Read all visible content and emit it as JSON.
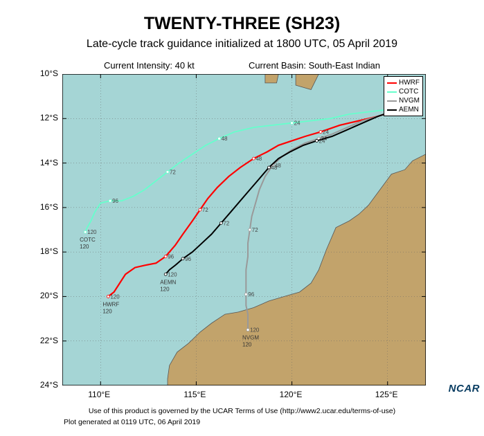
{
  "title": "TWENTY-THREE (SH23)",
  "subtitle": "Late-cycle track guidance initialized at 1800 UTC, 05 April 2019",
  "current_intensity_label": "Current Intensity: 40 kt",
  "current_basin_label": "Current Basin: South-East Indian",
  "ncar_logo_text": "NCAR",
  "disclaimer": "Use of this product is governed by the UCAR Terms of Use (http://www2.ucar.edu/terms-of-use)",
  "timestamp": "Plot generated at 0119 UTC, 06 April 2019",
  "chart": {
    "type": "map-track",
    "background_ocean": "#a5d5d5",
    "background_land": "#c2a36b",
    "coastline_color": "#555555",
    "gridline_color": "#666666",
    "axis_label_fontsize": 12,
    "title_fontsize": 25,
    "subtitle_fontsize": 16,
    "info_fontsize": 13,
    "xlim": [
      108,
      127
    ],
    "ylim": [
      -24,
      -10
    ],
    "xtick_step": 5,
    "ytick_step": 2,
    "xticks": [
      "110°E",
      "115°E",
      "120°E",
      "125°E"
    ],
    "yticks": [
      "10°S",
      "12°S",
      "14°S",
      "16°S",
      "18°S",
      "20°S",
      "22°S",
      "24°S"
    ],
    "hour_markers": [
      24,
      48,
      72,
      96,
      120
    ],
    "hour_marker_color": "#ffffff",
    "hour_label_fontsize": 8,
    "legend": {
      "position": "upper-right",
      "border_color": "#000000",
      "background": "#ffffff",
      "fontsize": 10,
      "items": [
        {
          "label": "HWRF",
          "color": "#ff0000"
        },
        {
          "label": "COTC",
          "color": "#66ffcc"
        },
        {
          "label": "NVGM",
          "color": "#999999"
        },
        {
          "label": "AEMN",
          "color": "#000000"
        }
      ]
    },
    "tracks": [
      {
        "model": "HWRF",
        "color": "#ff0000",
        "line_width": 2.2,
        "end_label_lonlat": [
          110.4,
          -20.0
        ],
        "points": [
          [
            125.9,
            -11.5
          ],
          [
            125.2,
            -11.7
          ],
          [
            124.5,
            -11.9
          ],
          [
            123.5,
            -12.1
          ],
          [
            122.5,
            -12.3
          ],
          [
            121.5,
            -12.6
          ],
          [
            120.7,
            -12.8
          ],
          [
            120.0,
            -13.0
          ],
          [
            119.3,
            -13.2
          ],
          [
            118.7,
            -13.5
          ],
          [
            118.0,
            -13.8
          ],
          [
            117.3,
            -14.2
          ],
          [
            116.7,
            -14.6
          ],
          [
            116.1,
            -15.1
          ],
          [
            115.6,
            -15.6
          ],
          [
            115.2,
            -16.1
          ],
          [
            114.8,
            -16.6
          ],
          [
            114.3,
            -17.2
          ],
          [
            113.9,
            -17.7
          ],
          [
            113.4,
            -18.2
          ],
          [
            112.9,
            -18.5
          ],
          [
            112.3,
            -18.6
          ],
          [
            111.8,
            -18.7
          ],
          [
            111.3,
            -19.0
          ],
          [
            111.0,
            -19.4
          ],
          [
            110.7,
            -19.8
          ],
          [
            110.4,
            -20.0
          ]
        ],
        "hours": [
          [
            121.5,
            -12.6,
            24
          ],
          [
            118.0,
            -13.8,
            48
          ],
          [
            115.2,
            -16.1,
            72
          ],
          [
            113.4,
            -18.2,
            96
          ],
          [
            110.4,
            -20.0,
            120
          ]
        ]
      },
      {
        "model": "COTC",
        "color": "#66ffcc",
        "line_width": 1.8,
        "end_label_lonlat": [
          109.2,
          -17.1
        ],
        "points": [
          [
            125.9,
            -11.5
          ],
          [
            125.0,
            -11.6
          ],
          [
            124.0,
            -11.7
          ],
          [
            123.0,
            -11.8
          ],
          [
            122.0,
            -12.0
          ],
          [
            121.0,
            -12.1
          ],
          [
            120.0,
            -12.2
          ],
          [
            119.0,
            -12.3
          ],
          [
            118.0,
            -12.4
          ],
          [
            117.0,
            -12.6
          ],
          [
            116.2,
            -12.9
          ],
          [
            115.5,
            -13.2
          ],
          [
            114.8,
            -13.6
          ],
          [
            114.1,
            -14.0
          ],
          [
            113.5,
            -14.4
          ],
          [
            112.9,
            -14.8
          ],
          [
            112.3,
            -15.2
          ],
          [
            111.7,
            -15.5
          ],
          [
            111.1,
            -15.7
          ],
          [
            110.5,
            -15.7
          ],
          [
            110.0,
            -15.8
          ],
          [
            109.7,
            -16.2
          ],
          [
            109.5,
            -16.6
          ],
          [
            109.3,
            -16.9
          ],
          [
            109.2,
            -17.1
          ]
        ],
        "hours": [
          [
            120.0,
            -12.2,
            24
          ],
          [
            116.2,
            -12.9,
            48
          ],
          [
            113.5,
            -14.4,
            72
          ],
          [
            110.5,
            -15.7,
            96
          ],
          [
            109.2,
            -17.1,
            120
          ]
        ]
      },
      {
        "model": "NVGM",
        "color": "#999999",
        "line_width": 2.0,
        "end_label_lonlat": [
          117.7,
          -21.5
        ],
        "points": [
          [
            125.9,
            -11.5
          ],
          [
            125.2,
            -11.7
          ],
          [
            124.5,
            -11.9
          ],
          [
            123.7,
            -12.1
          ],
          [
            122.9,
            -12.4
          ],
          [
            122.1,
            -12.7
          ],
          [
            121.4,
            -12.9
          ],
          [
            120.7,
            -13.1
          ],
          [
            120.0,
            -13.4
          ],
          [
            119.5,
            -13.7
          ],
          [
            119.0,
            -14.1
          ],
          [
            118.6,
            -14.6
          ],
          [
            118.3,
            -15.2
          ],
          [
            118.1,
            -15.8
          ],
          [
            117.9,
            -16.4
          ],
          [
            117.8,
            -17.0
          ],
          [
            117.7,
            -17.6
          ],
          [
            117.7,
            -18.2
          ],
          [
            117.6,
            -18.8
          ],
          [
            117.6,
            -19.4
          ],
          [
            117.6,
            -19.9
          ],
          [
            117.6,
            -20.4
          ],
          [
            117.7,
            -20.8
          ],
          [
            117.7,
            -21.2
          ],
          [
            117.7,
            -21.5
          ]
        ],
        "hours": [
          [
            121.4,
            -12.9,
            24
          ],
          [
            119.0,
            -14.1,
            48
          ],
          [
            117.8,
            -17.0,
            72
          ],
          [
            117.6,
            -19.9,
            96
          ],
          [
            117.7,
            -21.5,
            120
          ]
        ]
      },
      {
        "model": "AEMN",
        "color": "#000000",
        "line_width": 2.0,
        "end_label_lonlat": [
          113.4,
          -19.0
        ],
        "points": [
          [
            125.9,
            -11.5
          ],
          [
            125.2,
            -11.7
          ],
          [
            124.5,
            -11.9
          ],
          [
            123.7,
            -12.2
          ],
          [
            122.9,
            -12.5
          ],
          [
            122.1,
            -12.8
          ],
          [
            121.3,
            -13.0
          ],
          [
            120.6,
            -13.2
          ],
          [
            119.9,
            -13.5
          ],
          [
            119.3,
            -13.8
          ],
          [
            118.8,
            -14.2
          ],
          [
            118.3,
            -14.7
          ],
          [
            117.8,
            -15.2
          ],
          [
            117.3,
            -15.7
          ],
          [
            116.8,
            -16.2
          ],
          [
            116.3,
            -16.7
          ],
          [
            115.8,
            -17.2
          ],
          [
            115.3,
            -17.6
          ],
          [
            114.8,
            -18.0
          ],
          [
            114.3,
            -18.3
          ],
          [
            113.9,
            -18.6
          ],
          [
            113.6,
            -18.8
          ],
          [
            113.4,
            -19.0
          ]
        ],
        "hours": [
          [
            121.3,
            -13.0,
            24
          ],
          [
            118.8,
            -14.2,
            48
          ],
          [
            116.3,
            -16.7,
            72
          ],
          [
            114.3,
            -18.3,
            96
          ],
          [
            113.4,
            -19.0,
            120
          ]
        ]
      }
    ],
    "initial_position": {
      "lon": 125.9,
      "lat": -11.5,
      "marker": "cross",
      "color": "#ff0000",
      "size": 10
    },
    "coastline": [
      [
        [
          118.6,
          -10.0
        ],
        [
          119.3,
          -10.0
        ],
        [
          119.2,
          -10.4
        ],
        [
          118.6,
          -10.4
        ],
        [
          118.6,
          -10.0
        ]
      ],
      [
        [
          120.2,
          -10.0
        ],
        [
          121.4,
          -10.0
        ],
        [
          121.0,
          -10.7
        ],
        [
          120.2,
          -10.5
        ],
        [
          120.2,
          -10.0
        ]
      ],
      [
        [
          127.0,
          -13.6
        ],
        [
          126.3,
          -13.9
        ],
        [
          125.9,
          -14.3
        ],
        [
          125.2,
          -14.5
        ],
        [
          124.6,
          -15.2
        ],
        [
          124.0,
          -15.9
        ],
        [
          123.5,
          -16.3
        ],
        [
          123.0,
          -16.6
        ],
        [
          122.3,
          -16.9
        ],
        [
          121.8,
          -17.9
        ],
        [
          121.4,
          -18.8
        ],
        [
          121.0,
          -19.4
        ],
        [
          120.4,
          -19.8
        ],
        [
          119.6,
          -20.0
        ],
        [
          118.8,
          -20.2
        ],
        [
          118.0,
          -20.5
        ],
        [
          117.2,
          -20.7
        ],
        [
          116.5,
          -20.8
        ],
        [
          115.8,
          -21.2
        ],
        [
          115.2,
          -21.6
        ],
        [
          114.6,
          -22.1
        ],
        [
          114.0,
          -22.5
        ],
        [
          113.6,
          -23.1
        ],
        [
          113.5,
          -23.7
        ],
        [
          113.5,
          -24.0
        ],
        [
          127.0,
          -24.0
        ],
        [
          127.0,
          -13.6
        ]
      ]
    ]
  }
}
